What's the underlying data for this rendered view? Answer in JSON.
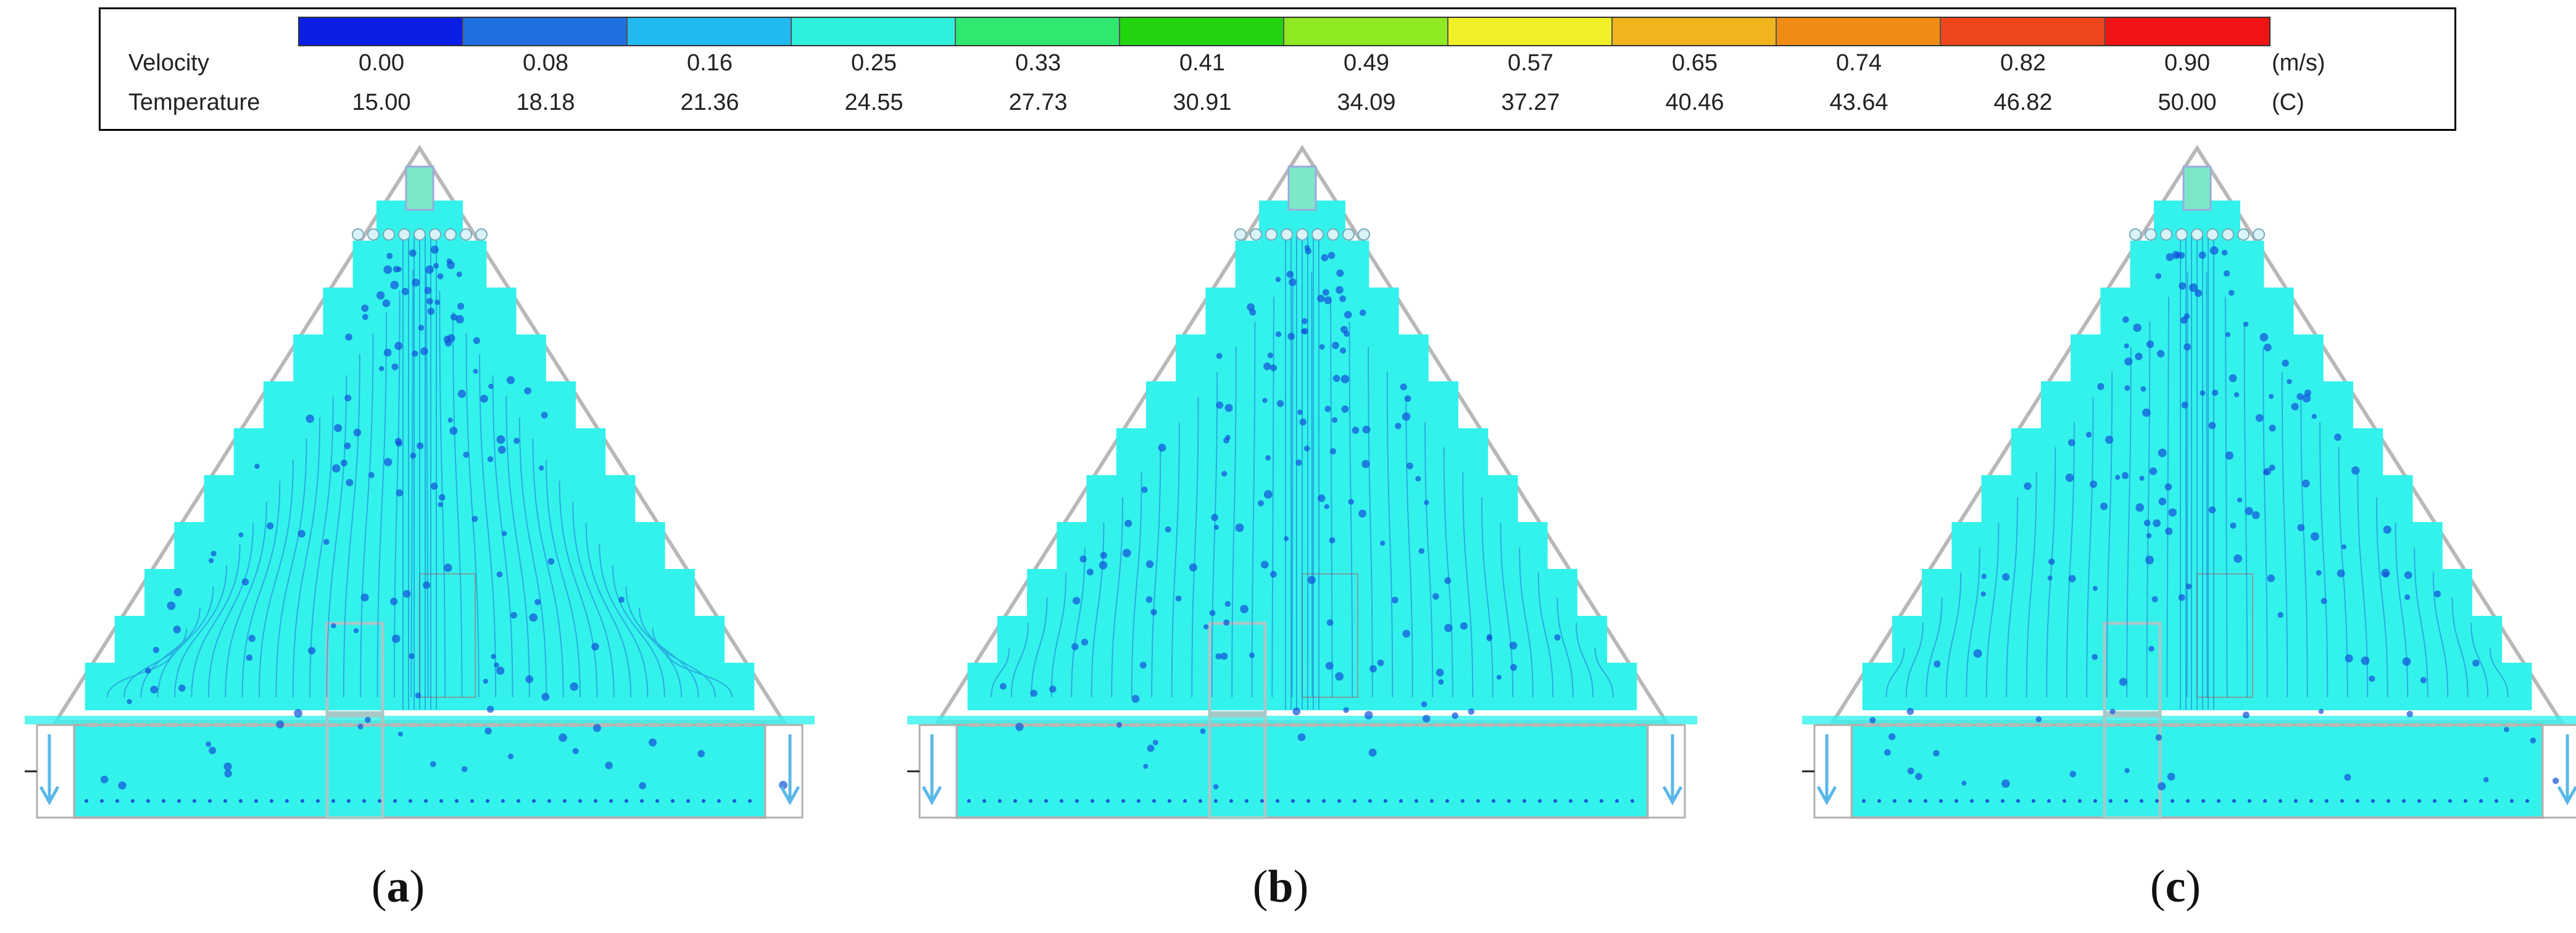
{
  "legend": {
    "rows": [
      {
        "label": "Velocity",
        "unit": "(m/s)",
        "values": [
          "0.00",
          "0.08",
          "0.16",
          "0.25",
          "0.33",
          "0.41",
          "0.49",
          "0.57",
          "0.65",
          "0.74",
          "0.82",
          "0.90"
        ]
      },
      {
        "label": "Temperature",
        "unit": "(C)",
        "values": [
          "15.00",
          "18.18",
          "21.36",
          "24.55",
          "27.73",
          "30.91",
          "34.09",
          "37.27",
          "40.46",
          "43.64",
          "46.82",
          "50.00"
        ]
      }
    ],
    "colors": [
      "#0a1ee6",
      "#1f6fe0",
      "#22b8f0",
      "#2ef0dc",
      "#30e870",
      "#22d40e",
      "#8ee822",
      "#f0f028",
      "#f0b41e",
      "#f08c14",
      "#f0461e",
      "#f01414"
    ]
  },
  "field_color": "#33f2ec",
  "panels": [
    {
      "caption_open": "(",
      "caption_letter": "a",
      "caption_close": ")"
    },
    {
      "caption_open": "(",
      "caption_letter": "b",
      "caption_close": ")"
    },
    {
      "caption_open": "(",
      "caption_letter": "c",
      "caption_close": ")"
    }
  ]
}
